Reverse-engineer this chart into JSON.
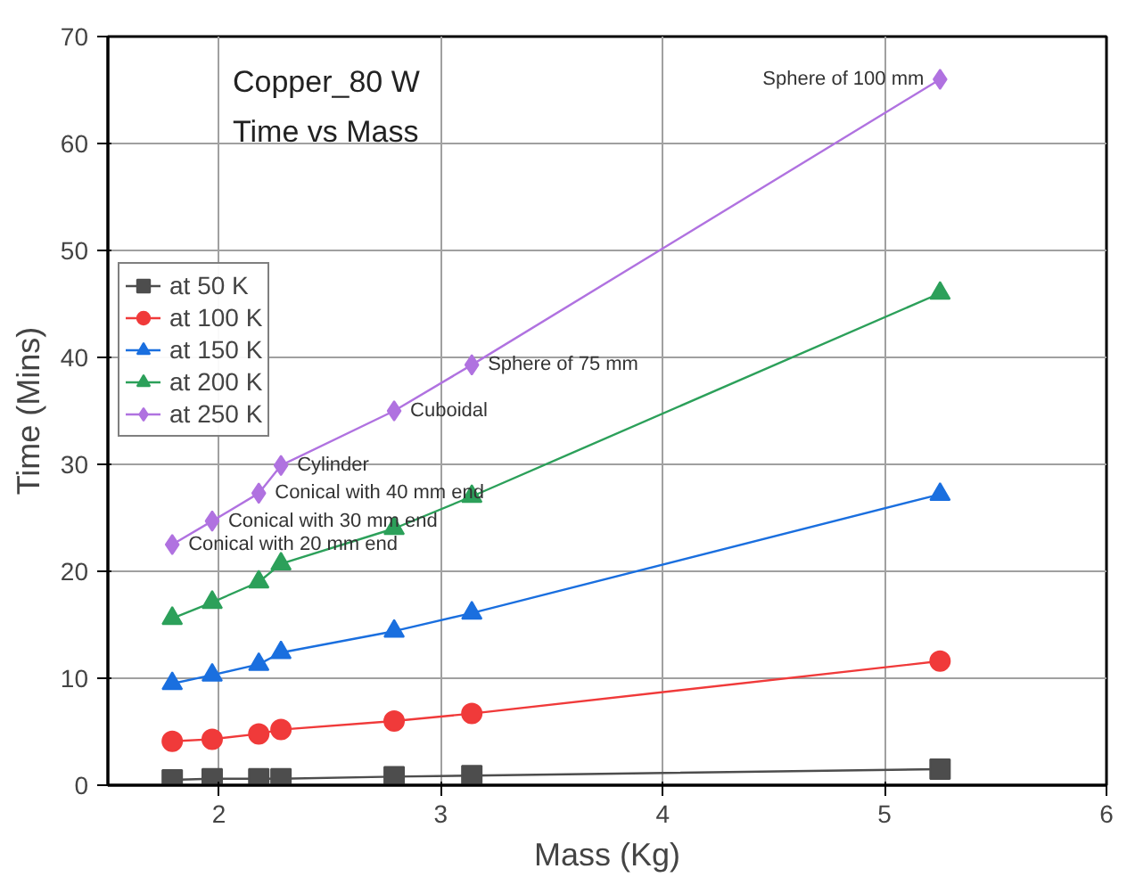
{
  "chart_data": {
    "type": "line",
    "title": "Copper_80 W",
    "subtitle": "Time vs Mass",
    "xlabel": "Mass (Kg)",
    "ylabel": "Time (Mins)",
    "x": [
      1.79,
      1.97,
      2.18,
      2.28,
      2.79,
      3.14,
      5.25
    ],
    "series": [
      {
        "name": "at 50 K",
        "color": "#4d4d4d",
        "marker": "square",
        "values": [
          0.5,
          0.6,
          0.6,
          0.6,
          0.8,
          0.9,
          1.5
        ]
      },
      {
        "name": "at 100 K",
        "color": "#f03a3a",
        "marker": "circle",
        "values": [
          4.1,
          4.3,
          4.8,
          5.2,
          6.0,
          6.7,
          11.6
        ]
      },
      {
        "name": "at 150 K",
        "color": "#1a6fdf",
        "marker": "triangle",
        "values": [
          9.5,
          10.3,
          11.3,
          12.4,
          14.4,
          16.1,
          27.2
        ]
      },
      {
        "name": "at 200 K",
        "color": "#2ca05a",
        "marker": "triangle",
        "values": [
          15.6,
          17.1,
          19.0,
          20.7,
          24.0,
          27.0,
          46.0
        ]
      },
      {
        "name": "at 250 K",
        "color": "#b072e0",
        "marker": "diamond",
        "values": [
          22.5,
          24.7,
          27.3,
          29.9,
          35.0,
          39.3,
          66.0
        ]
      }
    ],
    "xlim": [
      1.5,
      6
    ],
    "xticks": [
      2,
      3,
      4,
      5,
      6
    ],
    "ylim": [
      0,
      70
    ],
    "yticks": [
      0,
      10,
      20,
      30,
      40,
      50,
      60,
      70
    ],
    "grid": true,
    "legend": "left",
    "line_style": "solid",
    "annotations": [
      {
        "text": "Conical with 20 mm end",
        "x": 1.79,
        "y": 22.5
      },
      {
        "text": "Conical with 30 mm end",
        "x": 1.97,
        "y": 24.7
      },
      {
        "text": "Conical with 40 mm end",
        "x": 2.18,
        "y": 27.3
      },
      {
        "text": "Cylinder",
        "x": 2.28,
        "y": 29.9
      },
      {
        "text": "Cuboidal",
        "x": 2.79,
        "y": 35.0
      },
      {
        "text": "Sphere of 75 mm",
        "x": 3.14,
        "y": 39.3
      },
      {
        "text": "Sphere of 100 mm",
        "x": 5.25,
        "y": 66.0
      }
    ]
  }
}
